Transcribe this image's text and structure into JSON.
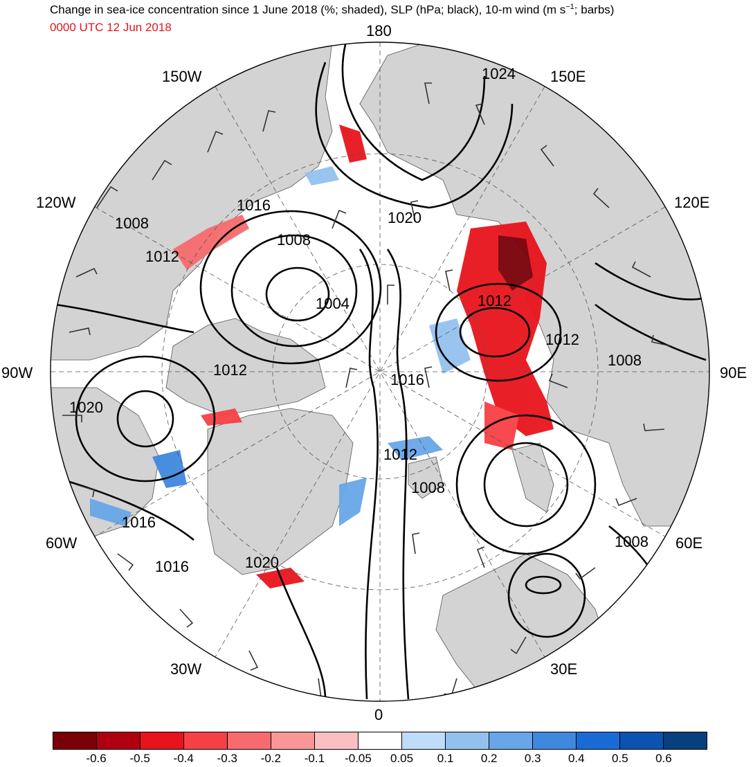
{
  "header": {
    "title_main": "Change in sea-ice concentration since 1 June 2018 (%; shaded), SLP (hPa; black), 10-m wind (m s",
    "title_sup": "−1",
    "title_end": "; barbs)",
    "valid_time": "0000 UTC 12 Jun 2018"
  },
  "lon_labels": {
    "n180": "180",
    "n0": "0",
    "w150": "150W",
    "e150": "150E",
    "w120": "120W",
    "e120": "120E",
    "w90": "90W",
    "e90": "90E",
    "w60": "60W",
    "e60": "60E",
    "w30": "30W",
    "e30": "30E"
  },
  "slp_labels": [
    {
      "id": "1024",
      "text": "1024"
    },
    {
      "id": "1020a",
      "text": "1020"
    },
    {
      "id": "1016a",
      "text": "1016"
    },
    {
      "id": "1008a",
      "text": "1008"
    },
    {
      "id": "1008b",
      "text": "1008"
    },
    {
      "id": "1012a",
      "text": "1012"
    },
    {
      "id": "1004",
      "text": "1004"
    },
    {
      "id": "1012b",
      "text": "1012"
    },
    {
      "id": "1012c",
      "text": "1012"
    },
    {
      "id": "1008c",
      "text": "1008"
    },
    {
      "id": "1012d",
      "text": "1012"
    },
    {
      "id": "1016b",
      "text": "1016"
    },
    {
      "id": "1020b",
      "text": "1020"
    },
    {
      "id": "1012e",
      "text": "1012"
    },
    {
      "id": "1008d",
      "text": "1008"
    },
    {
      "id": "1016c",
      "text": "1016"
    },
    {
      "id": "1008e",
      "text": "1008"
    },
    {
      "id": "1016d",
      "text": "1016"
    },
    {
      "id": "1020c",
      "text": "1020"
    }
  ],
  "colorbar": {
    "colors": [
      "#7a0008",
      "#b00010",
      "#e8141c",
      "#f74045",
      "#f76a6e",
      "#f99698",
      "#fcbfc1",
      "#ffffff",
      "#bfdcf8",
      "#93c1ef",
      "#68a6e8",
      "#3f88de",
      "#1a6ad6",
      "#0c52b0",
      "#083f7e"
    ],
    "ticks": [
      "-0.6",
      "-0.5",
      "-0.4",
      "-0.3",
      "-0.2",
      "-0.1",
      "-0.05",
      "0.05",
      "0.1",
      "0.2",
      "0.3",
      "0.4",
      "0.5",
      "0.6"
    ]
  }
}
